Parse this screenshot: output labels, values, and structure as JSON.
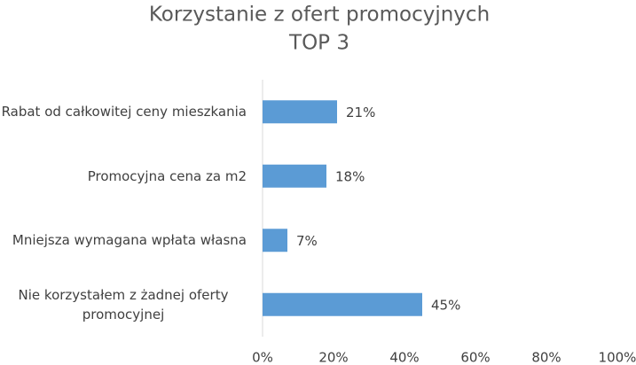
{
  "chart_data": {
    "type": "bar",
    "orientation": "horizontal",
    "title": "Korzystanie z ofert promocyjnych",
    "subtitle": "TOP 3",
    "categories": [
      "Rabat od całkowitej ceny mieszkania",
      "Promocyjna cena za m2",
      "Mniejsza wymagana wpłata własna",
      "Nie korzystałem z żadnej oferty promocyjnej"
    ],
    "values": [
      21,
      18,
      7,
      45
    ],
    "value_labels": [
      "21%",
      "18%",
      "7%",
      "45%"
    ],
    "color": "#5b9bd5",
    "xlim": [
      0,
      100
    ],
    "xticks": [
      {
        "value": 0,
        "label": "0%"
      },
      {
        "value": 20,
        "label": "20%"
      },
      {
        "value": 40,
        "label": "40%"
      },
      {
        "value": 60,
        "label": "60%"
      },
      {
        "value": 80,
        "label": "80%"
      },
      {
        "value": 100,
        "label": "100%"
      }
    ],
    "grid": false
  }
}
